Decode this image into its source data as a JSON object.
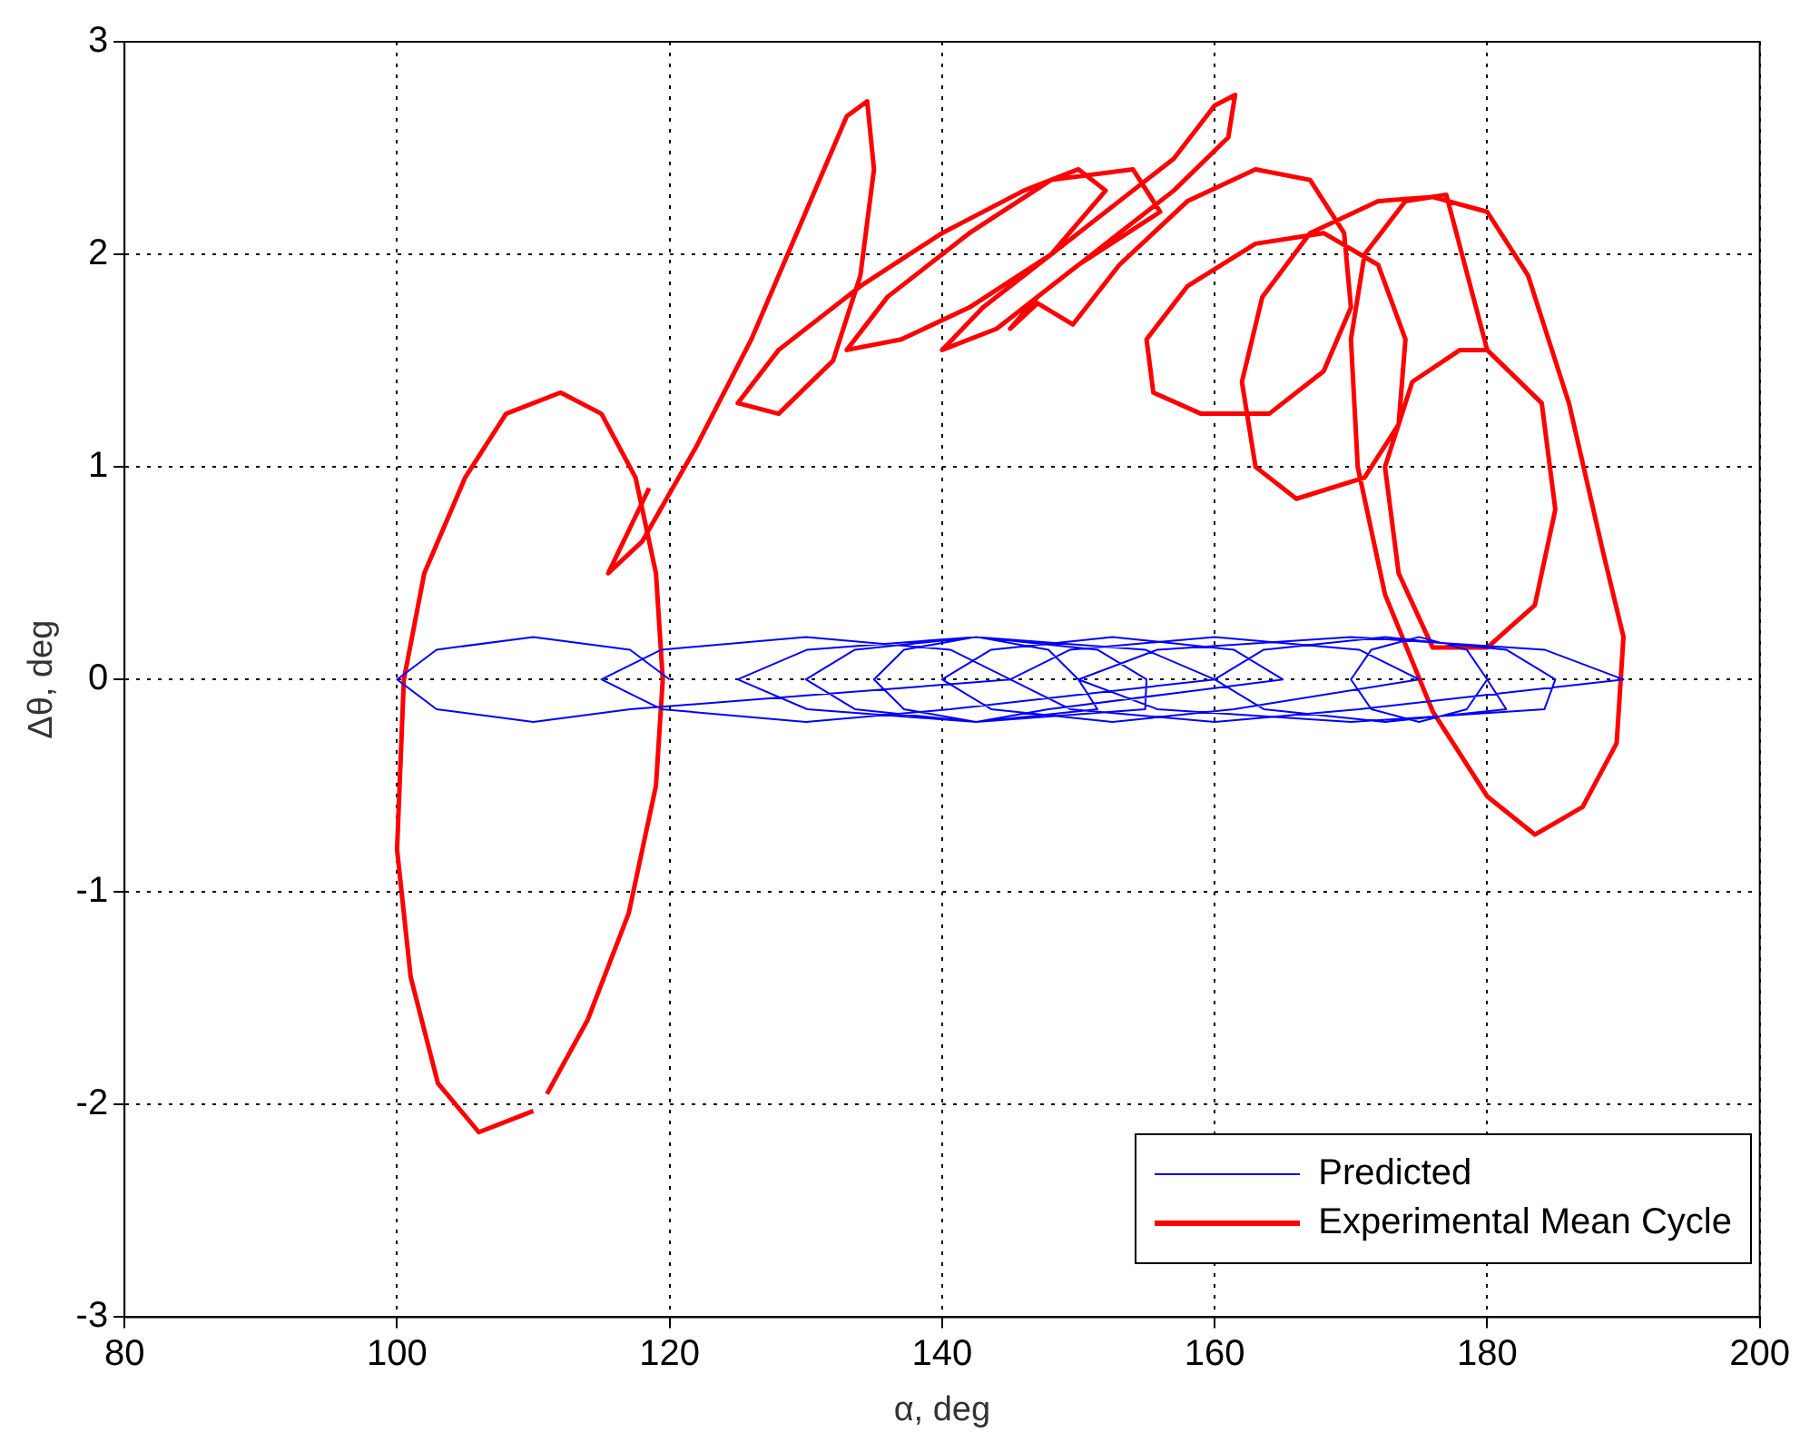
{
  "chart_data": {
    "type": "line",
    "xlabel": "α, deg",
    "ylabel": "Δθ, deg",
    "xlim": [
      80,
      200
    ],
    "ylim": [
      -3,
      3
    ],
    "xticks": [
      80,
      100,
      120,
      140,
      160,
      180,
      200
    ],
    "yticks": [
      -3,
      -2,
      -1,
      0,
      1,
      2,
      3
    ],
    "grid": true,
    "legend": "bottom right",
    "series": [
      {
        "name": "Predicted",
        "color": "#0000ff",
        "x": [
          120,
          117.1,
          110,
          102.9,
          100,
          102.9,
          110,
          117.1,
          145,
          140.6,
          130,
          119.4,
          115,
          119.4,
          130,
          140.6,
          160,
          154.9,
          142.5,
          130.1,
          125,
          130.1,
          142.5,
          154.9,
          155,
          151.4,
          142.5,
          133.6,
          130,
          133.6,
          142.5,
          151.4,
          150,
          147.8,
          142.5,
          137.2,
          135,
          137.2,
          142.5,
          147.8,
          165,
          161.4,
          152.5,
          143.6,
          140,
          143.6,
          152.5,
          161.4,
          175,
          170.6,
          160,
          149.4,
          145,
          149.4,
          160,
          170.6,
          190,
          184.2,
          170,
          155.8,
          150,
          155.8,
          170,
          184.2,
          185,
          181.4,
          172.5,
          163.6,
          160,
          163.6,
          172.5,
          181.4,
          180,
          178.5,
          175,
          171.5,
          170,
          171.5,
          175,
          178.5,
          180
        ],
        "values": [
          0,
          0.14,
          0.2,
          0.14,
          0,
          -0.14,
          -0.2,
          -0.14,
          0,
          0.14,
          0.2,
          0.14,
          0,
          -0.14,
          -0.2,
          -0.14,
          0,
          0.14,
          0.2,
          0.14,
          0,
          -0.14,
          -0.2,
          -0.14,
          0,
          0.14,
          0.2,
          0.14,
          0,
          -0.14,
          -0.2,
          -0.14,
          0,
          0.14,
          0.2,
          0.14,
          0,
          -0.14,
          -0.2,
          -0.14,
          0,
          0.14,
          0.2,
          0.14,
          0,
          -0.14,
          -0.2,
          -0.14,
          0,
          0.14,
          0.2,
          0.14,
          0,
          -0.14,
          -0.2,
          -0.14,
          0,
          0.14,
          0.2,
          0.14,
          0,
          -0.14,
          -0.2,
          -0.14,
          0,
          0.14,
          0.2,
          0.14,
          0,
          -0.14,
          -0.2,
          -0.14,
          0,
          0.14,
          0.2,
          0.14,
          0,
          -0.14,
          -0.2,
          -0.14,
          0
        ]
      },
      {
        "color": "#ff0000",
        "x": [
          110,
          106,
          103,
          101,
          100,
          100.5,
          102,
          105,
          108,
          112,
          115,
          117.5,
          119,
          119.5,
          119,
          117,
          114,
          111
        ],
        "values": [
          -2.03,
          -2.13,
          -1.9,
          -1.4,
          -0.8,
          0,
          0.5,
          0.95,
          1.25,
          1.35,
          1.25,
          0.95,
          0.5,
          0,
          -0.5,
          -1.1,
          -1.6,
          -1.95
        ]
      },
      {
        "name": "Experimental Mean Cycle",
        "color": "#ff0000",
        "x": [
          118.5,
          115.5,
          118,
          122,
          126,
          130,
          133,
          134.5,
          135,
          134,
          132,
          128,
          125,
          128,
          134,
          140,
          146,
          150,
          152,
          148,
          142,
          137,
          133,
          136,
          142,
          148,
          154,
          156,
          150,
          144,
          140,
          143,
          150,
          157,
          160,
          161.5,
          161,
          157,
          152,
          147,
          145,
          147,
          149.6,
          153,
          158,
          163,
          167,
          169.5,
          170,
          168,
          164,
          159,
          155.5,
          155,
          158,
          163,
          168,
          172,
          174,
          173.5,
          171,
          166,
          163,
          162,
          163.5,
          167,
          172,
          176,
          180,
          183,
          186,
          188.5,
          190,
          189.5,
          187,
          183.5,
          180,
          176,
          172.5,
          170.5,
          170,
          171,
          174,
          177,
          180,
          184,
          185,
          183.5,
          180,
          176,
          173.5,
          172.5,
          174.5,
          178,
          180
        ],
        "values": [
          0.9,
          0.5,
          0.65,
          1.1,
          1.6,
          2.2,
          2.65,
          2.72,
          2.4,
          1.9,
          1.5,
          1.25,
          1.3,
          1.55,
          1.85,
          2.1,
          2.3,
          2.4,
          2.3,
          2.0,
          1.75,
          1.6,
          1.55,
          1.8,
          2.1,
          2.35,
          2.4,
          2.2,
          1.95,
          1.65,
          1.55,
          1.75,
          2.1,
          2.45,
          2.7,
          2.75,
          2.55,
          2.3,
          2.05,
          1.8,
          1.65,
          1.77,
          1.67,
          1.95,
          2.25,
          2.4,
          2.35,
          2.1,
          1.75,
          1.45,
          1.25,
          1.25,
          1.35,
          1.6,
          1.85,
          2.05,
          2.1,
          1.95,
          1.6,
          1.2,
          0.95,
          0.85,
          1.0,
          1.4,
          1.8,
          2.1,
          2.25,
          2.27,
          2.2,
          1.9,
          1.3,
          0.6,
          0.2,
          -0.3,
          -0.6,
          -0.73,
          -0.55,
          -0.15,
          0.4,
          1.0,
          1.6,
          2.0,
          2.25,
          2.28,
          1.55,
          1.3,
          0.8,
          0.35,
          0.15,
          0.15,
          0.5,
          1.0,
          1.4,
          1.55,
          1.55
        ]
      }
    ]
  }
}
